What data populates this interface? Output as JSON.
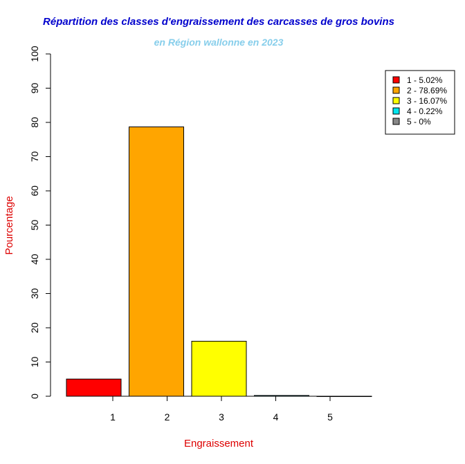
{
  "chart_data": {
    "type": "bar",
    "title": "Répartition des classes d'engraissement des carcasses de gros bovins",
    "subtitle": "en Région wallonne en 2023",
    "xlabel": "Engraissement",
    "ylabel": "Pourcentage",
    "categories": [
      "1",
      "2",
      "3",
      "4",
      "5"
    ],
    "values": [
      5.02,
      78.69,
      16.07,
      0.22,
      0
    ],
    "ylim": [
      0,
      100
    ],
    "yticks": [
      "0",
      "10",
      "20",
      "30",
      "40",
      "50",
      "60",
      "70",
      "80",
      "90",
      "100"
    ],
    "grid": false,
    "legend_position": "top-right",
    "legend": [
      "1 - 5.02%",
      "2 - 78.69%",
      "3 - 16.07%",
      "4 - 0.22%",
      "5 - 0%"
    ],
    "colors": [
      "#ff0000",
      "#ffa500",
      "#ffff00",
      "#00e5ee",
      "#888888"
    ],
    "title_color": "#0000cd",
    "subtitle_color": "#87ceeb",
    "axis_label_color": "#dd0000"
  }
}
